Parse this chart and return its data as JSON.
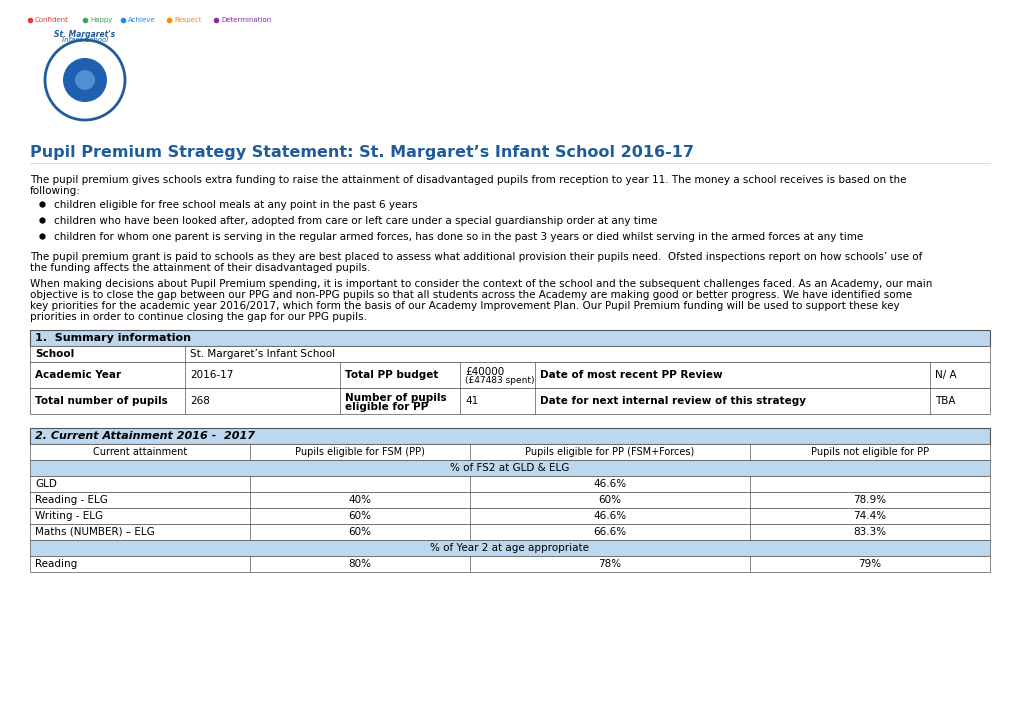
{
  "title": "Pupil Premium Strategy Statement: St. Margaret’s Infant School 2016-17",
  "title_color": "#1F5C99",
  "body_text1_line1": "The pupil premium gives schools extra funding to raise the attainment of disadvantaged pupils from reception to year 11. The money a school receives is based on the",
  "body_text1_line2": "following:",
  "bullets": [
    "children eligible for free school meals at any point in the past 6 years",
    "children who have been looked after, adopted from care or left care under a special guardianship order at any time",
    "children for whom one parent is serving in the regular armed forces, has done so in the past 3 years or died whilst serving in the armed forces at any time"
  ],
  "body_text2_line1": "The pupil premium grant is paid to schools as they are best placed to assess what additional provision their pupils need.  Ofsted inspections report on how schools’ use of",
  "body_text2_line2": "the funding affects the attainment of their disadvantaged pupils.",
  "body_text3_line1": "When making decisions about Pupil Premium spending, it is important to consider the context of the school and the subsequent challenges faced. As an Academy, our main",
  "body_text3_line2": "objective is to close the gap between our PPG and non-PPG pupils so that all students across the Academy are making good or better progress. We have identified some",
  "body_text3_line3": "key priorities for the academic year 2016/2017, which form the basis of our Academy Improvement Plan. Our Pupil Premium funding will be used to support these key",
  "body_text3_line4": "priorities in order to continue closing the gap for our PPG pupils.",
  "section1_title": "1.  Summary information",
  "section2_title": "2. Current Attainment 2016 -  2017",
  "attainment_headers": [
    "Current attainment",
    "Pupils eligible for FSM (PP)",
    "Pupils eligible for PP (FSM+Forces)",
    "Pupils not eligible for PP"
  ],
  "attainment_subheader": "% of FS2 at GLD & ELG",
  "attainment_rows": [
    [
      "GLD",
      "",
      "46.6%",
      ""
    ],
    [
      "Reading - ELG",
      "40%",
      "60%",
      "78.9%"
    ],
    [
      "Writing - ELG",
      "60%",
      "46.6%",
      "74.4%"
    ],
    [
      "Maths (NUMBER) – ELG",
      "60%",
      "66.6%",
      "83.3%"
    ]
  ],
  "attainment_subheader2": "% of Year 2 at age appropriate",
  "attainment_rows2": [
    [
      "Reading",
      "80%",
      "78%",
      "79%"
    ]
  ],
  "nav_items": [
    {
      "label": "Confident",
      "color": "#E53935"
    },
    {
      "label": "Happy",
      "color": "#43A047"
    },
    {
      "label": "Achieve",
      "color": "#1E88E5"
    },
    {
      "label": "Respect",
      "color": "#FB8C00"
    },
    {
      "label": "Determination",
      "color": "#8E24AA"
    }
  ],
  "section_header_bg": "#BDD7EE",
  "table_border_color": "#555555",
  "bg_color": "#FFFFFF"
}
